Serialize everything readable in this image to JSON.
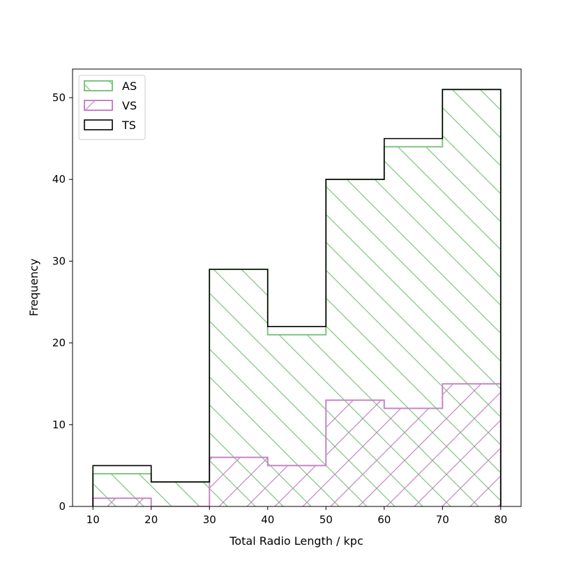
{
  "chart_data": {
    "type": "histogram",
    "xlabel": "Total Radio Length / kpc",
    "ylabel": "Frequency",
    "bin_edges": [
      10,
      20,
      30,
      40,
      50,
      60,
      70,
      80
    ],
    "xlim": [
      6.5,
      83.5
    ],
    "ylim": [
      0,
      53.5
    ],
    "xticks": [
      10,
      20,
      30,
      40,
      50,
      60,
      70,
      80
    ],
    "yticks": [
      0,
      10,
      20,
      30,
      40,
      50
    ],
    "grid": false,
    "legend_position": "upper-left",
    "series": [
      {
        "name": "AS",
        "values": [
          4,
          3,
          29,
          21,
          40,
          44,
          51
        ],
        "color": "#7fc47f",
        "hatch": "\\"
      },
      {
        "name": "VS",
        "values": [
          1,
          0,
          6,
          5,
          13,
          12,
          15
        ],
        "color": "#c882c8",
        "hatch": "/"
      },
      {
        "name": "TS",
        "values": [
          5,
          3,
          29,
          22,
          40,
          45,
          51
        ],
        "color": "#000000",
        "hatch": ""
      }
    ]
  }
}
